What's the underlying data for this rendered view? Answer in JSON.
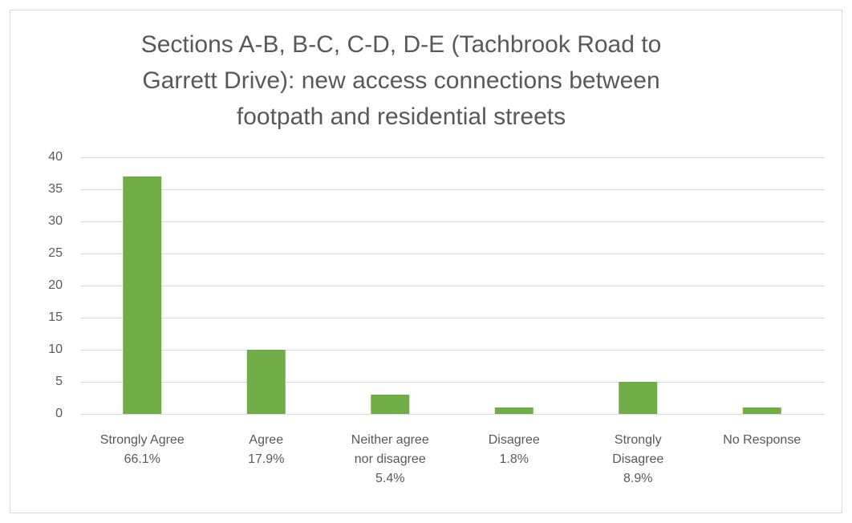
{
  "chart_data": {
    "type": "bar",
    "title": [
      "Sections A-B, B-C, C-D, D-E (Tachbrook Road to",
      "Garrett Drive): new access connections between",
      "footpath and residential streets"
    ],
    "categories": [
      [
        "Strongly Agree",
        "66.1%"
      ],
      [
        "Agree",
        "17.9%"
      ],
      [
        "Neither agree",
        "nor disagree",
        "5.4%"
      ],
      [
        "Disagree",
        "1.8%"
      ],
      [
        "Strongly",
        "Disagree",
        "8.9%"
      ],
      [
        "No Response"
      ]
    ],
    "values": [
      37,
      10,
      3,
      1,
      5,
      1
    ],
    "color": "#70ad47",
    "ylim": [
      0,
      40
    ],
    "yticks": [
      0,
      5,
      10,
      15,
      20,
      25,
      30,
      35,
      40
    ],
    "grid": true
  }
}
